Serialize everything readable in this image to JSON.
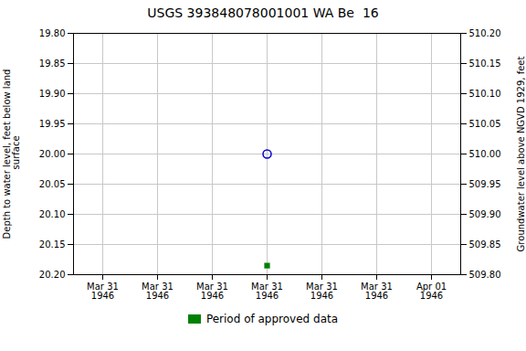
{
  "chart_data": {
    "type": "scatter",
    "title": "USGS 393848078001001 WA Be  16",
    "y_label": "Depth to water level, feet below land\n surface",
    "y2_label": "Groundwater level above NGVD 1929, feet",
    "categories": [
      "Mar 31\n1946",
      "Mar 31\n1946",
      "Mar 31\n1946",
      "Mar 31\n1946",
      "Mar 31\n1946",
      "Mar 31\n1946",
      "Apr 01\n1946"
    ],
    "series": [
      {
        "color": "#0000cc",
        "marker": "circle",
        "values": [
          null,
          null,
          null,
          20.0,
          null,
          null,
          null
        ]
      },
      {
        "name": "Period of approved data",
        "color": "#008000",
        "marker": "square",
        "values": [
          null,
          null,
          null,
          20.185,
          null,
          null,
          null
        ]
      }
    ],
    "ylim": [
      20.2,
      19.8
    ],
    "yticks": [
      {
        "value": 19.8,
        "label": "19.80"
      },
      19.85,
      {
        "value": 19.9,
        "label": "19.90"
      },
      19.95,
      {
        "value": 20.0,
        "label": "20.00"
      },
      20.05,
      {
        "value": 20.1,
        "label": "20.10"
      },
      20.15,
      {
        "value": 20.2,
        "label": "20.20"
      }
    ],
    "y2lim": [
      509.8,
      510.2
    ],
    "y2ticks": [
      {
        "value": 510.2,
        "label": "510.20"
      },
      510.15,
      {
        "value": 510.1,
        "label": "510.10"
      },
      510.05,
      {
        "value": 510.0,
        "label": "510.00"
      },
      509.95,
      {
        "value": 509.9,
        "label": "509.90"
      },
      509.85,
      {
        "value": 509.8,
        "label": "509.80"
      }
    ],
    "grid": true,
    "legend": "bottom"
  }
}
